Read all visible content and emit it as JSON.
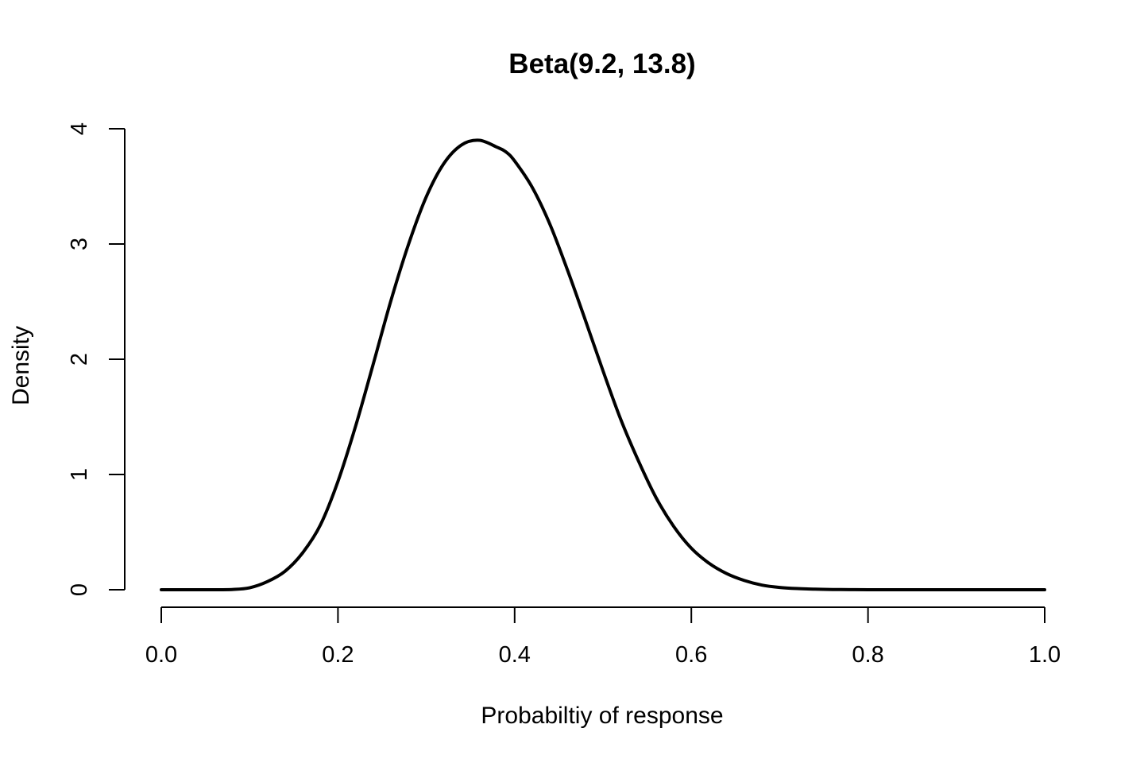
{
  "chart_data": {
    "type": "line",
    "title": "Beta(9.2, 13.8)",
    "xlabel": "Probabiltiy of response",
    "ylabel": "Density",
    "xlim": [
      0,
      1
    ],
    "ylim": [
      0,
      4
    ],
    "x_ticks": [
      0.0,
      0.2,
      0.4,
      0.6,
      0.8,
      1.0
    ],
    "x_tick_labels": [
      "0.0",
      "0.2",
      "0.4",
      "0.6",
      "0.8",
      "1.0"
    ],
    "y_ticks": [
      0,
      1,
      2,
      3,
      4
    ],
    "y_tick_labels": [
      "0",
      "1",
      "2",
      "3",
      "4"
    ],
    "grid": false,
    "series": [
      {
        "x": [
          0.0,
          0.02,
          0.04,
          0.06,
          0.08,
          0.1,
          0.12,
          0.14,
          0.16,
          0.18,
          0.2,
          0.22,
          0.24,
          0.26,
          0.28,
          0.3,
          0.32,
          0.34,
          0.36,
          0.38,
          0.39,
          0.4,
          0.42,
          0.44,
          0.46,
          0.48,
          0.5,
          0.52,
          0.54,
          0.56,
          0.58,
          0.6,
          0.62,
          0.64,
          0.66,
          0.68,
          0.7,
          0.72,
          0.74,
          0.76,
          0.78,
          0.8,
          0.85,
          0.9,
          0.95,
          1.0
        ],
        "y": [
          0.0,
          0.0,
          0.0,
          0.0,
          0.002,
          0.017,
          0.07,
          0.16,
          0.32,
          0.56,
          0.94,
          1.42,
          1.96,
          2.51,
          3.0,
          3.41,
          3.7,
          3.86,
          3.9,
          3.84,
          3.8,
          3.72,
          3.49,
          3.17,
          2.77,
          2.34,
          1.9,
          1.48,
          1.12,
          0.8,
          0.55,
          0.36,
          0.23,
          0.14,
          0.08,
          0.04,
          0.02,
          0.01,
          0.005,
          0.002,
          0.001,
          0.0,
          0.0,
          0.0,
          0.0,
          0.0
        ]
      }
    ]
  }
}
